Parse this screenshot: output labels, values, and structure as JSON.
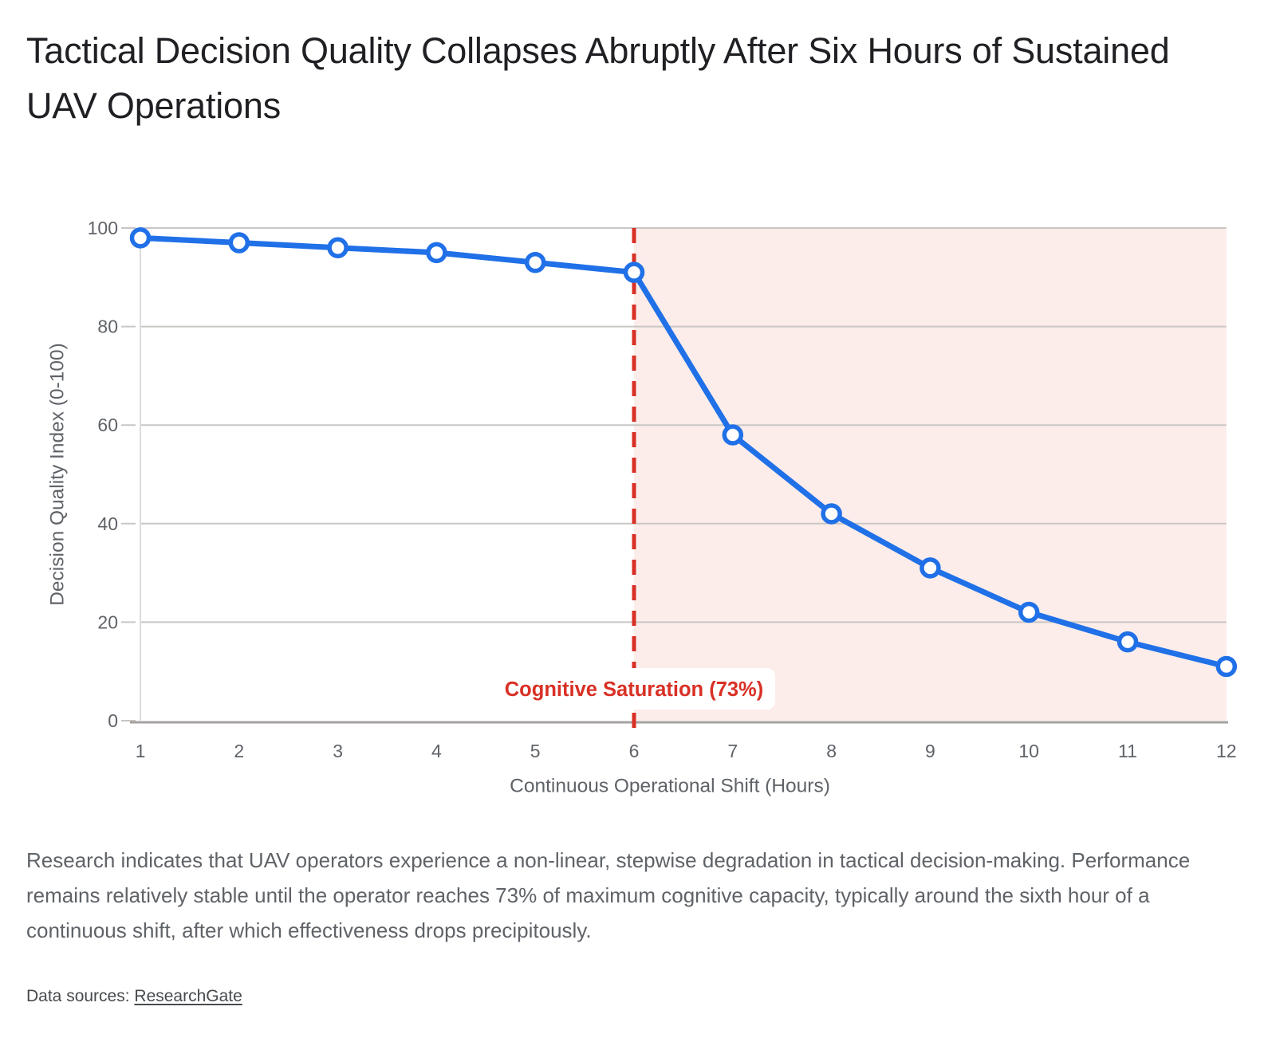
{
  "title": "Tactical Decision Quality Collapses Abruptly After Six Hours of Sustained UAV Operations",
  "chart_data": {
    "type": "line",
    "x": [
      1,
      2,
      3,
      4,
      5,
      6,
      7,
      8,
      9,
      10,
      11,
      12
    ],
    "values": [
      98,
      97,
      96,
      95,
      93,
      91,
      58,
      42,
      31,
      22,
      16,
      11
    ],
    "series_name": "Decision Quality Index",
    "xlabel": "Continuous Operational Shift (Hours)",
    "ylabel": "Decision Quality Index (0-100)",
    "ylim": [
      0,
      100
    ],
    "yticks": [
      0,
      20,
      40,
      60,
      80,
      100
    ],
    "grid": "horizontal",
    "legend": "none",
    "annotation": {
      "label": "Cognitive Saturation (73%)",
      "x": 6
    },
    "shaded_region": {
      "from_x": 6,
      "to_x": 12
    },
    "colors": {
      "line": "#2070e8",
      "marker_fill": "#ffffff",
      "region_fill": "#fcedea",
      "threshold": "#d93025",
      "annotation_text": "#d93025",
      "annotation_bg": "#ffffff",
      "grid": "#c9c6c4",
      "axis_line": "#a5a2a0",
      "tick_label": "#5f6368",
      "axis_title": "#5f6368"
    }
  },
  "caption": "Research indicates that UAV operators experience a non-linear, stepwise degradation in tactical decision-making. Performance remains relatively stable until the operator reaches 73% of maximum cognitive capacity, typically around the sixth hour of a continuous shift, after which effectiveness drops precipitously.",
  "sources": {
    "prefix": "Data sources: ",
    "link_label": "ResearchGate"
  }
}
